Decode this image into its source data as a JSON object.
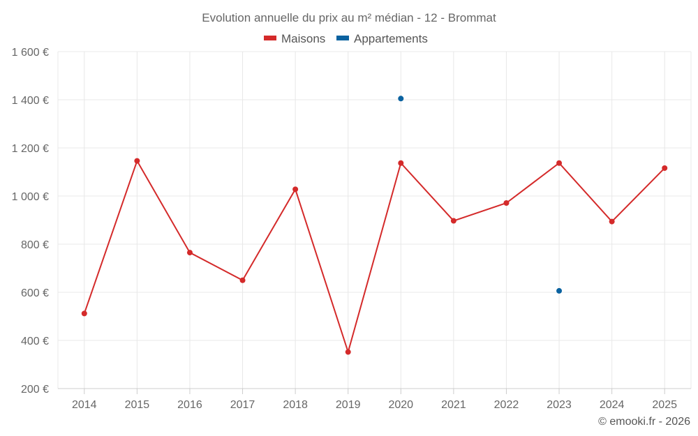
{
  "chart_data": {
    "type": "line",
    "title": "Evolution annuelle du prix au m² médian - 12 - Brommat",
    "categories": [
      "2014",
      "2015",
      "2016",
      "2017",
      "2018",
      "2019",
      "2020",
      "2021",
      "2022",
      "2023",
      "2024",
      "2025"
    ],
    "series": [
      {
        "name": "Maisons",
        "color": "#d42a2a",
        "values": [
          512,
          1146,
          765,
          650,
          1028,
          352,
          1137,
          897,
          971,
          1137,
          894,
          1116
        ]
      },
      {
        "name": "Appartements",
        "color": "#0a62a0",
        "values": [
          null,
          null,
          null,
          null,
          null,
          null,
          1405,
          null,
          null,
          606,
          null,
          null
        ]
      }
    ],
    "ylim": [
      200,
      1600
    ],
    "yticks": [
      200,
      400,
      600,
      800,
      1000,
      1200,
      1400,
      1600
    ],
    "ytick_labels": [
      "200 €",
      "400 €",
      "600 €",
      "800 €",
      "1 000 €",
      "1 200 €",
      "1 400 €",
      "1 600 €"
    ],
    "xlabel": "",
    "ylabel": "",
    "grid": true,
    "legend": "top-center"
  },
  "credit": "© emooki.fr - 2026"
}
